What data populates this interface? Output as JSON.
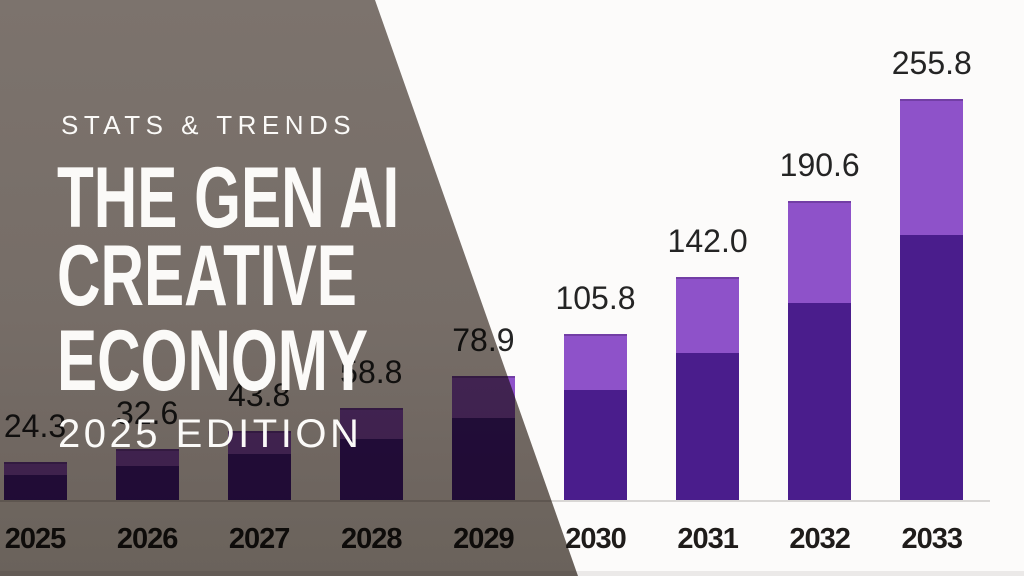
{
  "header": {
    "kicker": "STATS & TRENDS",
    "title_lines": [
      "THE GEN AI",
      "CREATIVE",
      "ECONOMY"
    ],
    "edition": "2025 EDITION"
  },
  "chart_data": {
    "type": "bar",
    "stacked": true,
    "categories": [
      "2025",
      "2026",
      "2027",
      "2028",
      "2029",
      "2030",
      "2031",
      "2032",
      "2033"
    ],
    "values": [
      24.3,
      32.6,
      43.8,
      58.8,
      78.9,
      105.8,
      142.0,
      190.6,
      255.8
    ],
    "value_labels": [
      "24.3",
      "32.6",
      "43.8",
      "58.8",
      "78.9",
      "105.8",
      "142.0",
      "190.6",
      "255.8"
    ],
    "series": [
      {
        "name": "dark-bottom-segment",
        "color": "#4A1D8C",
        "fraction": 0.66
      },
      {
        "name": "light-top-segment",
        "color": "#8E52C9",
        "fraction": 0.34
      }
    ],
    "title": "",
    "xlabel": "",
    "ylabel": "",
    "ylim": [
      0,
      270
    ],
    "grid": false,
    "legend": false
  },
  "colors": {
    "background": "#FCFBFA",
    "overlay_top": "#7D756F",
    "overlay_bottom": "#6B635D",
    "bar_dark": "#4A1D8C",
    "bar_light": "#8E52C9",
    "axis_line": "#D9D7D5",
    "value_label_text": "#242424",
    "year_label_text": "#1F1C1A",
    "title_text": "#FBFAF8"
  }
}
